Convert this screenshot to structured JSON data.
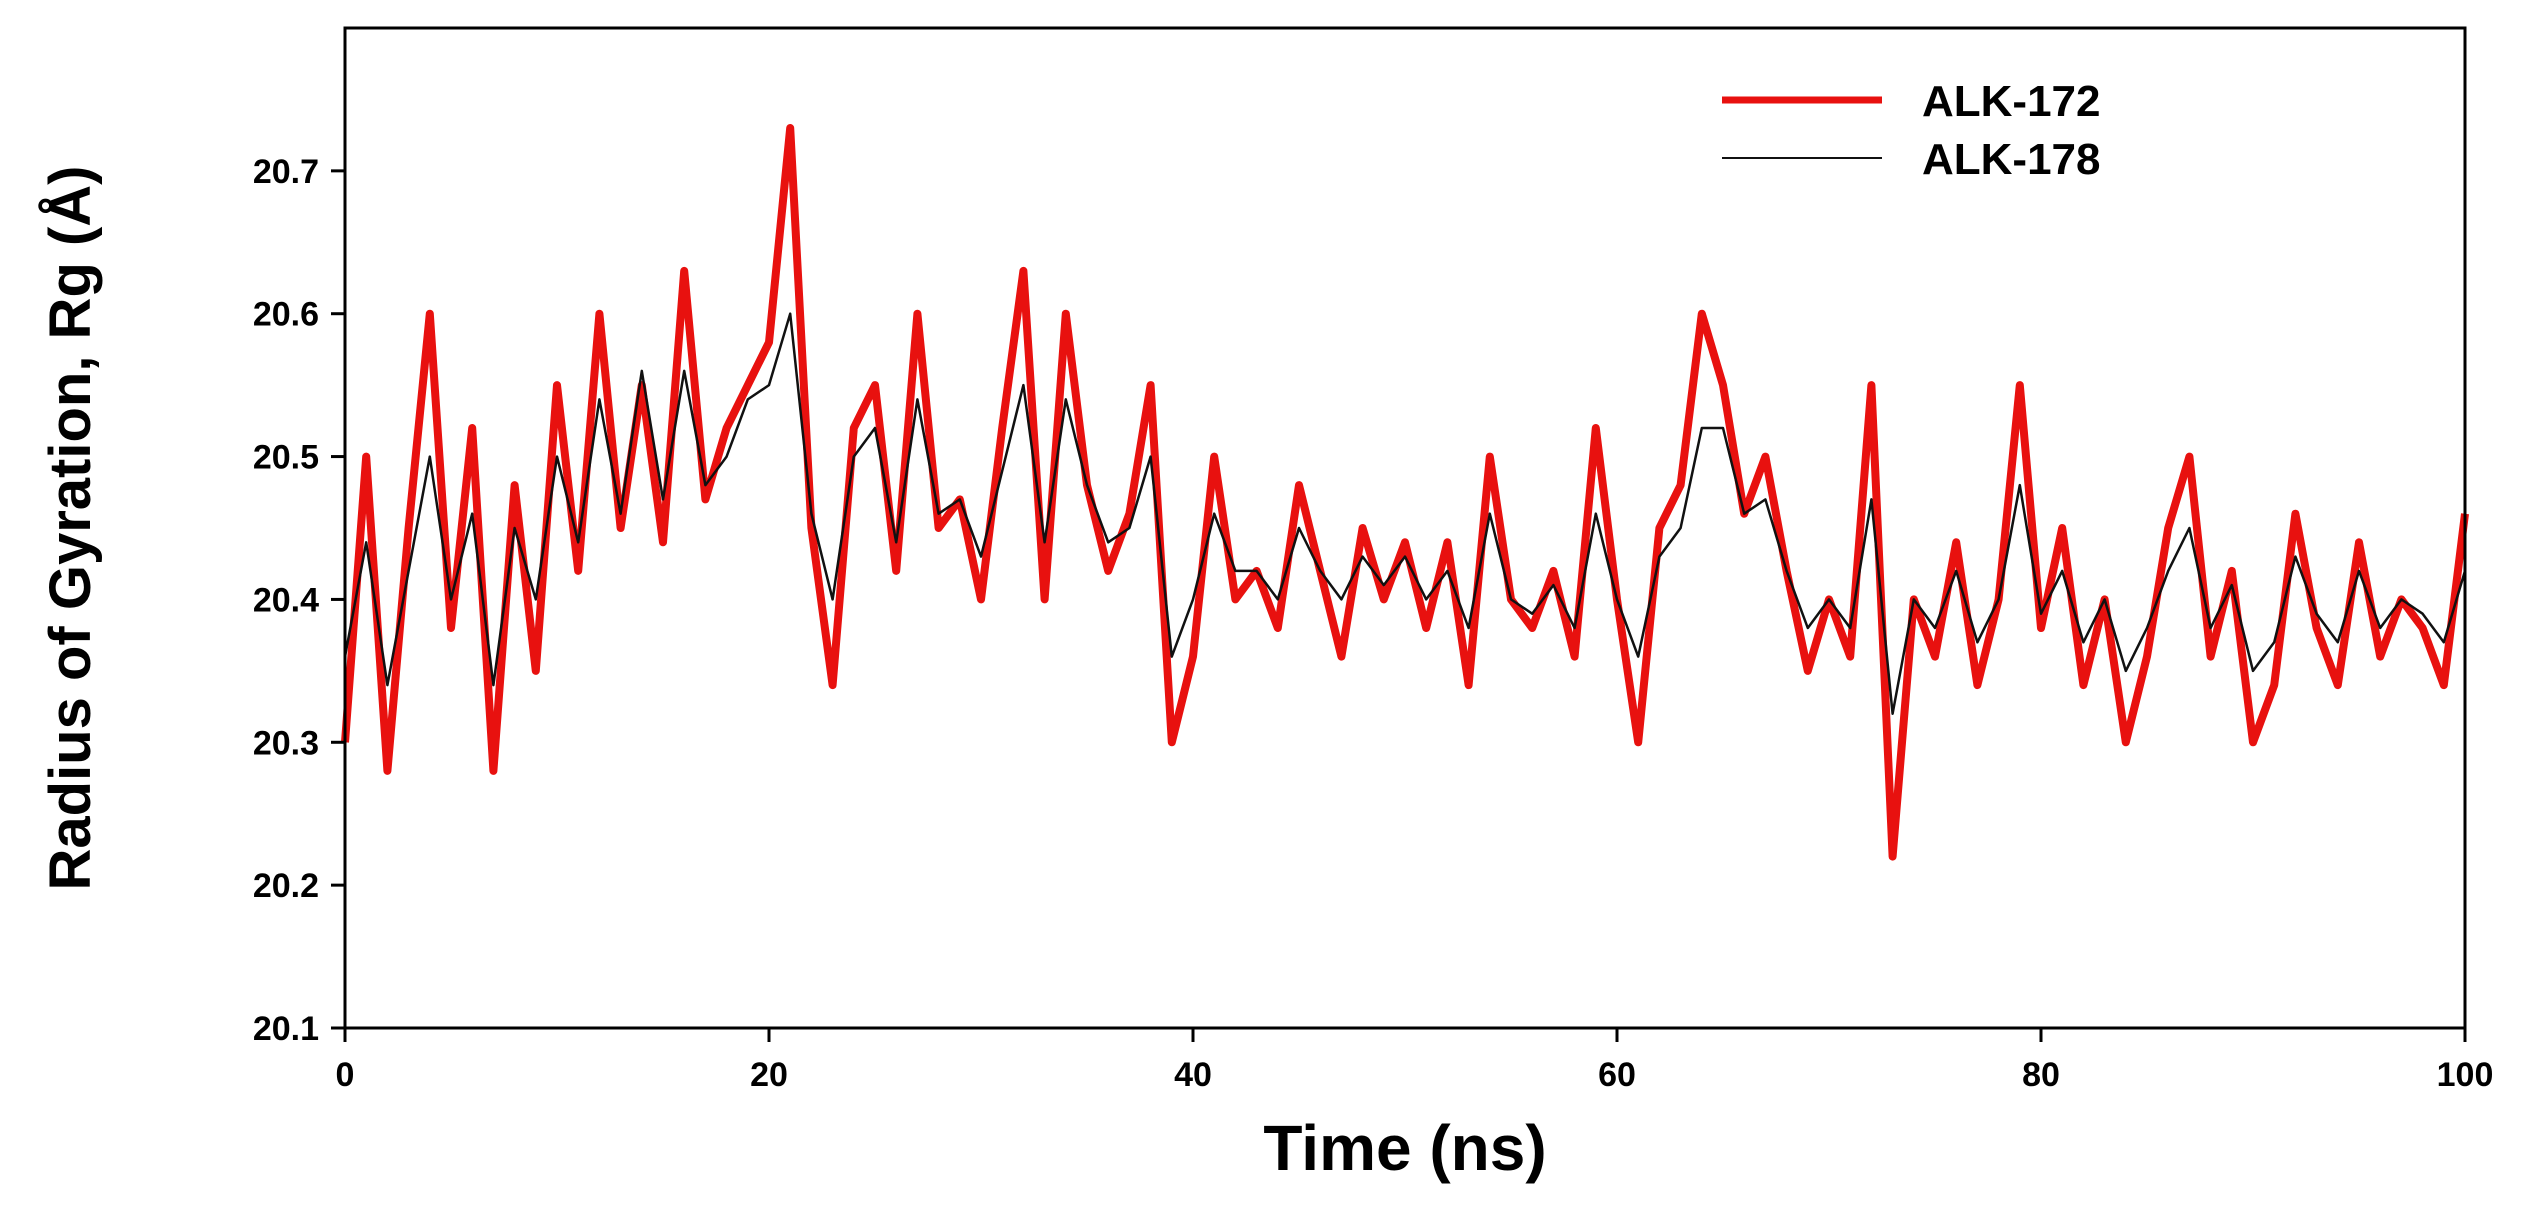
{
  "chart_data": {
    "type": "line",
    "xlabel": "Time (ns)",
    "ylabel": "Radius of Gyration, Rg (Å)",
    "xlim": [
      0,
      100
    ],
    "ylim": [
      20.1,
      20.8
    ],
    "x_ticks": [
      0,
      20,
      40,
      60,
      80,
      100
    ],
    "y_ticks": [
      20.1,
      20.2,
      20.3,
      20.4,
      20.5,
      20.6,
      20.7
    ],
    "x_tick_labels": [
      "0",
      "20",
      "40",
      "60",
      "80",
      "100"
    ],
    "y_tick_labels": [
      "20.1",
      "20.2",
      "20.3",
      "20.4",
      "20.5",
      "20.6",
      "20.7"
    ],
    "grid": false,
    "legend_position": "top-right",
    "series": [
      {
        "name": "ALK-172",
        "color": "#e8110f",
        "x": [
          0,
          1,
          2,
          3,
          4,
          5,
          6,
          7,
          8,
          9,
          10,
          11,
          12,
          13,
          14,
          15,
          16,
          17,
          18,
          19,
          20,
          21,
          22,
          23,
          24,
          25,
          26,
          27,
          28,
          29,
          30,
          31,
          32,
          33,
          34,
          35,
          36,
          37,
          38,
          39,
          40,
          41,
          42,
          43,
          44,
          45,
          46,
          47,
          48,
          49,
          50,
          51,
          52,
          53,
          54,
          55,
          56,
          57,
          58,
          59,
          60,
          61,
          62,
          63,
          64,
          65,
          66,
          67,
          68,
          69,
          70,
          71,
          72,
          73,
          74,
          75,
          76,
          77,
          78,
          79,
          80,
          81,
          82,
          83,
          84,
          85,
          86,
          87,
          88,
          89,
          90,
          91,
          92,
          93,
          94,
          95,
          96,
          97,
          98,
          99,
          100
        ],
        "y": [
          20.3,
          20.5,
          20.28,
          20.45,
          20.6,
          20.38,
          20.52,
          20.28,
          20.48,
          20.35,
          20.55,
          20.42,
          20.6,
          20.45,
          20.55,
          20.44,
          20.63,
          20.47,
          20.52,
          20.55,
          20.58,
          20.73,
          20.45,
          20.34,
          20.52,
          20.55,
          20.42,
          20.6,
          20.45,
          20.47,
          20.4,
          20.52,
          20.63,
          20.4,
          20.6,
          20.48,
          20.42,
          20.46,
          20.55,
          20.3,
          20.36,
          20.5,
          20.4,
          20.42,
          20.38,
          20.48,
          20.42,
          20.36,
          20.45,
          20.4,
          20.44,
          20.38,
          20.44,
          20.34,
          20.5,
          20.4,
          20.38,
          20.42,
          20.36,
          20.52,
          20.4,
          20.3,
          20.45,
          20.48,
          20.6,
          20.55,
          20.46,
          20.5,
          20.42,
          20.35,
          20.4,
          20.36,
          20.55,
          20.22,
          20.4,
          20.36,
          20.44,
          20.34,
          20.4,
          20.55,
          20.38,
          20.45,
          20.34,
          20.4,
          20.3,
          20.36,
          20.45,
          20.5,
          20.36,
          20.42,
          20.3,
          20.34,
          20.46,
          20.38,
          20.34,
          20.44,
          20.36,
          20.4,
          20.38,
          20.34,
          20.46
        ]
      },
      {
        "name": "ALK-178",
        "color": "#111111",
        "x": [
          0,
          1,
          2,
          3,
          4,
          5,
          6,
          7,
          8,
          9,
          10,
          11,
          12,
          13,
          14,
          15,
          16,
          17,
          18,
          19,
          20,
          21,
          22,
          23,
          24,
          25,
          26,
          27,
          28,
          29,
          30,
          31,
          32,
          33,
          34,
          35,
          36,
          37,
          38,
          39,
          40,
          41,
          42,
          43,
          44,
          45,
          46,
          47,
          48,
          49,
          50,
          51,
          52,
          53,
          54,
          55,
          56,
          57,
          58,
          59,
          60,
          61,
          62,
          63,
          64,
          65,
          66,
          67,
          68,
          69,
          70,
          71,
          72,
          73,
          74,
          75,
          76,
          77,
          78,
          79,
          80,
          81,
          82,
          83,
          84,
          85,
          86,
          87,
          88,
          89,
          90,
          91,
          92,
          93,
          94,
          95,
          96,
          97,
          98,
          99,
          100
        ],
        "y": [
          20.36,
          20.44,
          20.34,
          20.42,
          20.5,
          20.4,
          20.46,
          20.34,
          20.45,
          20.4,
          20.5,
          20.44,
          20.54,
          20.46,
          20.56,
          20.47,
          20.56,
          20.48,
          20.5,
          20.54,
          20.55,
          20.6,
          20.46,
          20.4,
          20.5,
          20.52,
          20.44,
          20.54,
          20.46,
          20.47,
          20.43,
          20.49,
          20.55,
          20.44,
          20.54,
          20.48,
          20.44,
          20.45,
          20.5,
          20.36,
          20.4,
          20.46,
          20.42,
          20.42,
          20.4,
          20.45,
          20.42,
          20.4,
          20.43,
          20.41,
          20.43,
          20.4,
          20.42,
          20.38,
          20.46,
          20.4,
          20.39,
          20.41,
          20.38,
          20.46,
          20.4,
          20.36,
          20.43,
          20.45,
          20.52,
          20.52,
          20.46,
          20.47,
          20.42,
          20.38,
          20.4,
          20.38,
          20.47,
          20.32,
          20.4,
          20.38,
          20.42,
          20.37,
          20.4,
          20.48,
          20.39,
          20.42,
          20.37,
          20.4,
          20.35,
          20.38,
          20.42,
          20.45,
          20.38,
          20.41,
          20.35,
          20.37,
          20.43,
          20.39,
          20.37,
          20.42,
          20.38,
          20.4,
          20.39,
          20.37,
          20.42
        ]
      }
    ]
  }
}
